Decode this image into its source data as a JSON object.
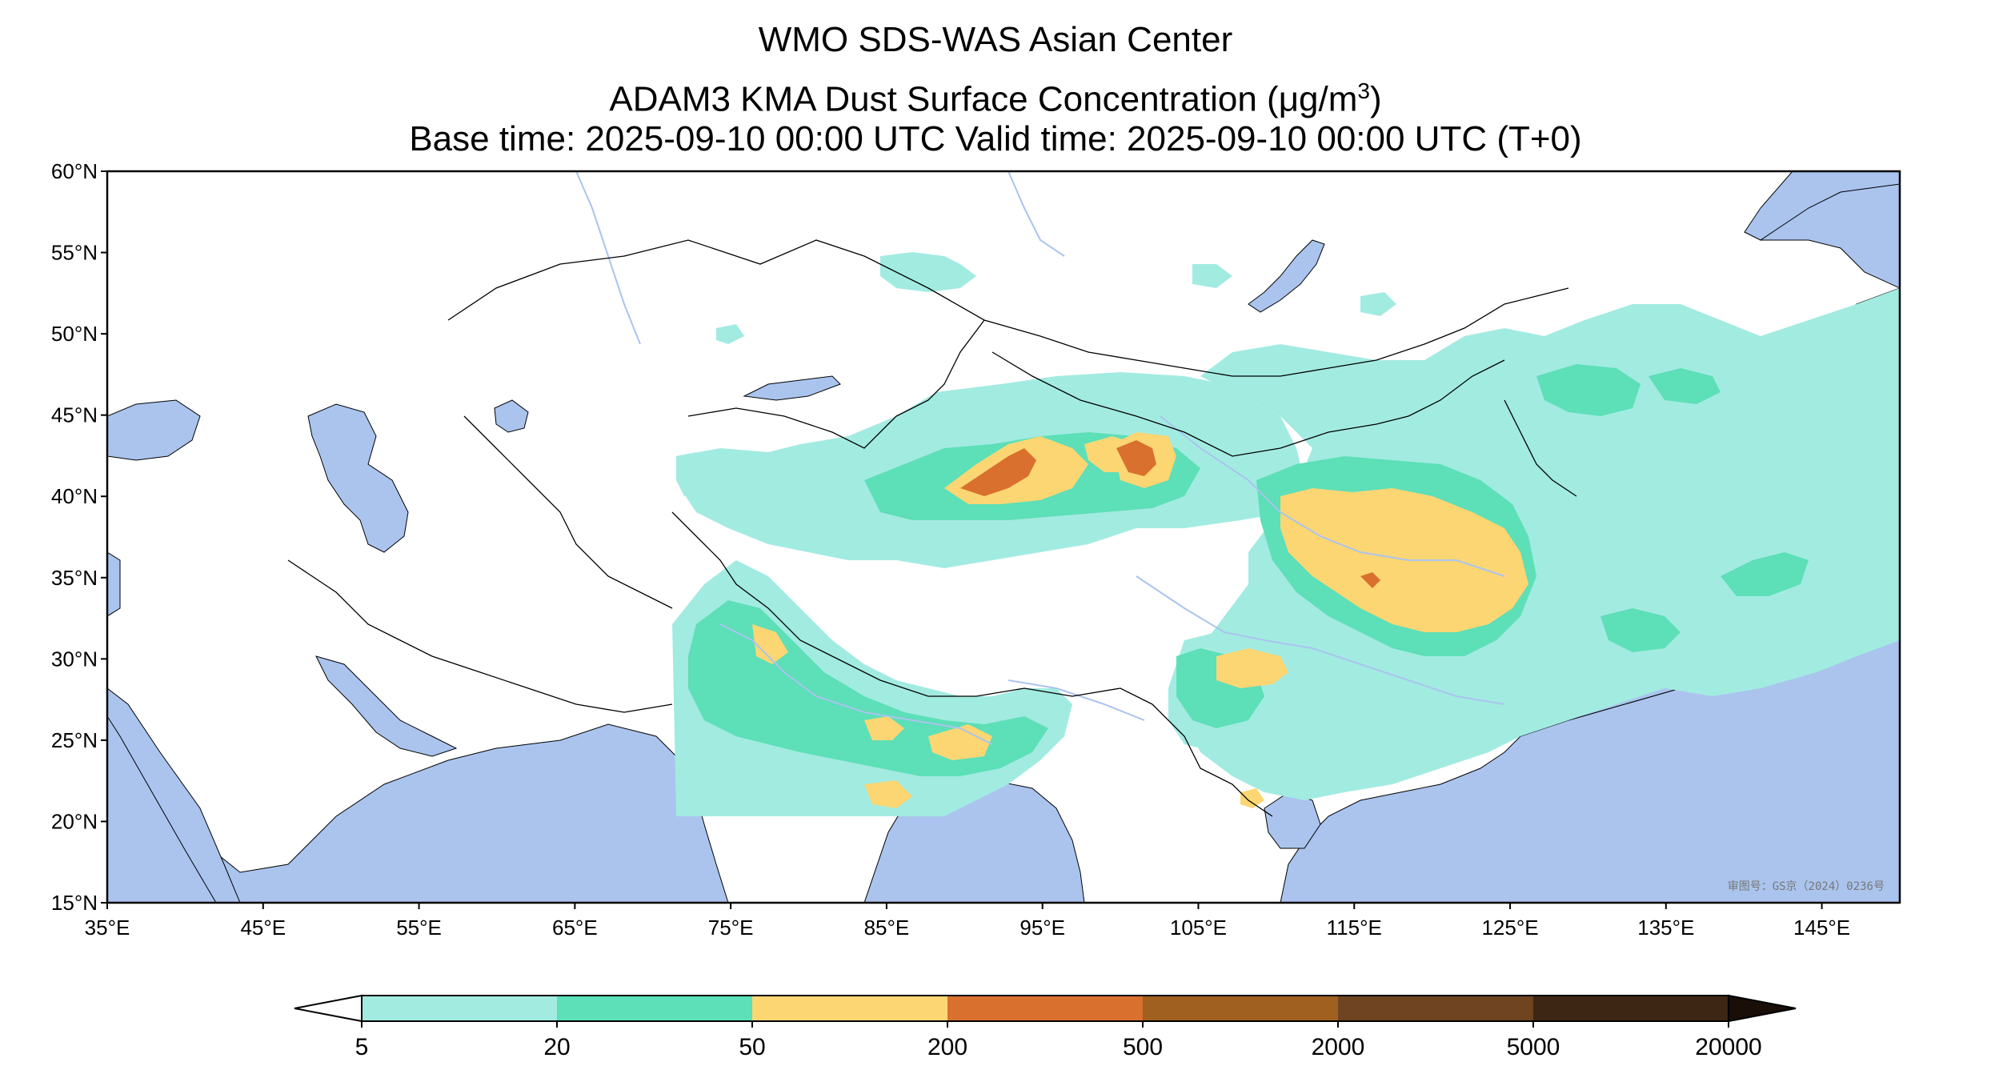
{
  "title": {
    "line1": "WMO SDS-WAS Asian Center",
    "line2_text": "ADAM3 KMA Dust Surface Concentration (",
    "line2_unit": "μg/m",
    "line2_sup": "3",
    "line2_close": ")",
    "line3": "Base time: 2025-09-10 00:00 UTC Valid time: 2025-09-10 00:00 UTC (T+0)"
  },
  "map": {
    "lon_range": [
      35,
      150
    ],
    "lat_range": [
      15,
      60
    ],
    "lon_ticks": [
      "35°E",
      "45°E",
      "55°E",
      "65°E",
      "75°E",
      "85°E",
      "95°E",
      "105°E",
      "115°E",
      "125°E",
      "135°E",
      "145°E"
    ],
    "lon_tick_values": [
      35,
      45,
      55,
      65,
      75,
      85,
      95,
      105,
      115,
      125,
      135,
      145
    ],
    "lat_ticks": [
      "60°N",
      "55°N",
      "50°N",
      "45°N",
      "40°N",
      "35°N",
      "30°N",
      "25°N",
      "20°N",
      "15°N"
    ],
    "lat_tick_values": [
      60,
      55,
      50,
      45,
      40,
      35,
      30,
      25,
      20,
      15
    ],
    "credit": "审图号：GS京（2024）0236号",
    "ocean_color": "#aac4ee",
    "land_color": "#ffffff"
  },
  "colorbar": {
    "levels": [
      "5",
      "20",
      "50",
      "200",
      "500",
      "2000",
      "5000",
      "20000"
    ],
    "colors": [
      "#a2ebe1",
      "#5ddfb8",
      "#fbd673",
      "#d9702e",
      "#a0601f",
      "#6e4520",
      "#3d2714"
    ],
    "under_color": "#ffffff",
    "over_color": "#1a0f08"
  }
}
